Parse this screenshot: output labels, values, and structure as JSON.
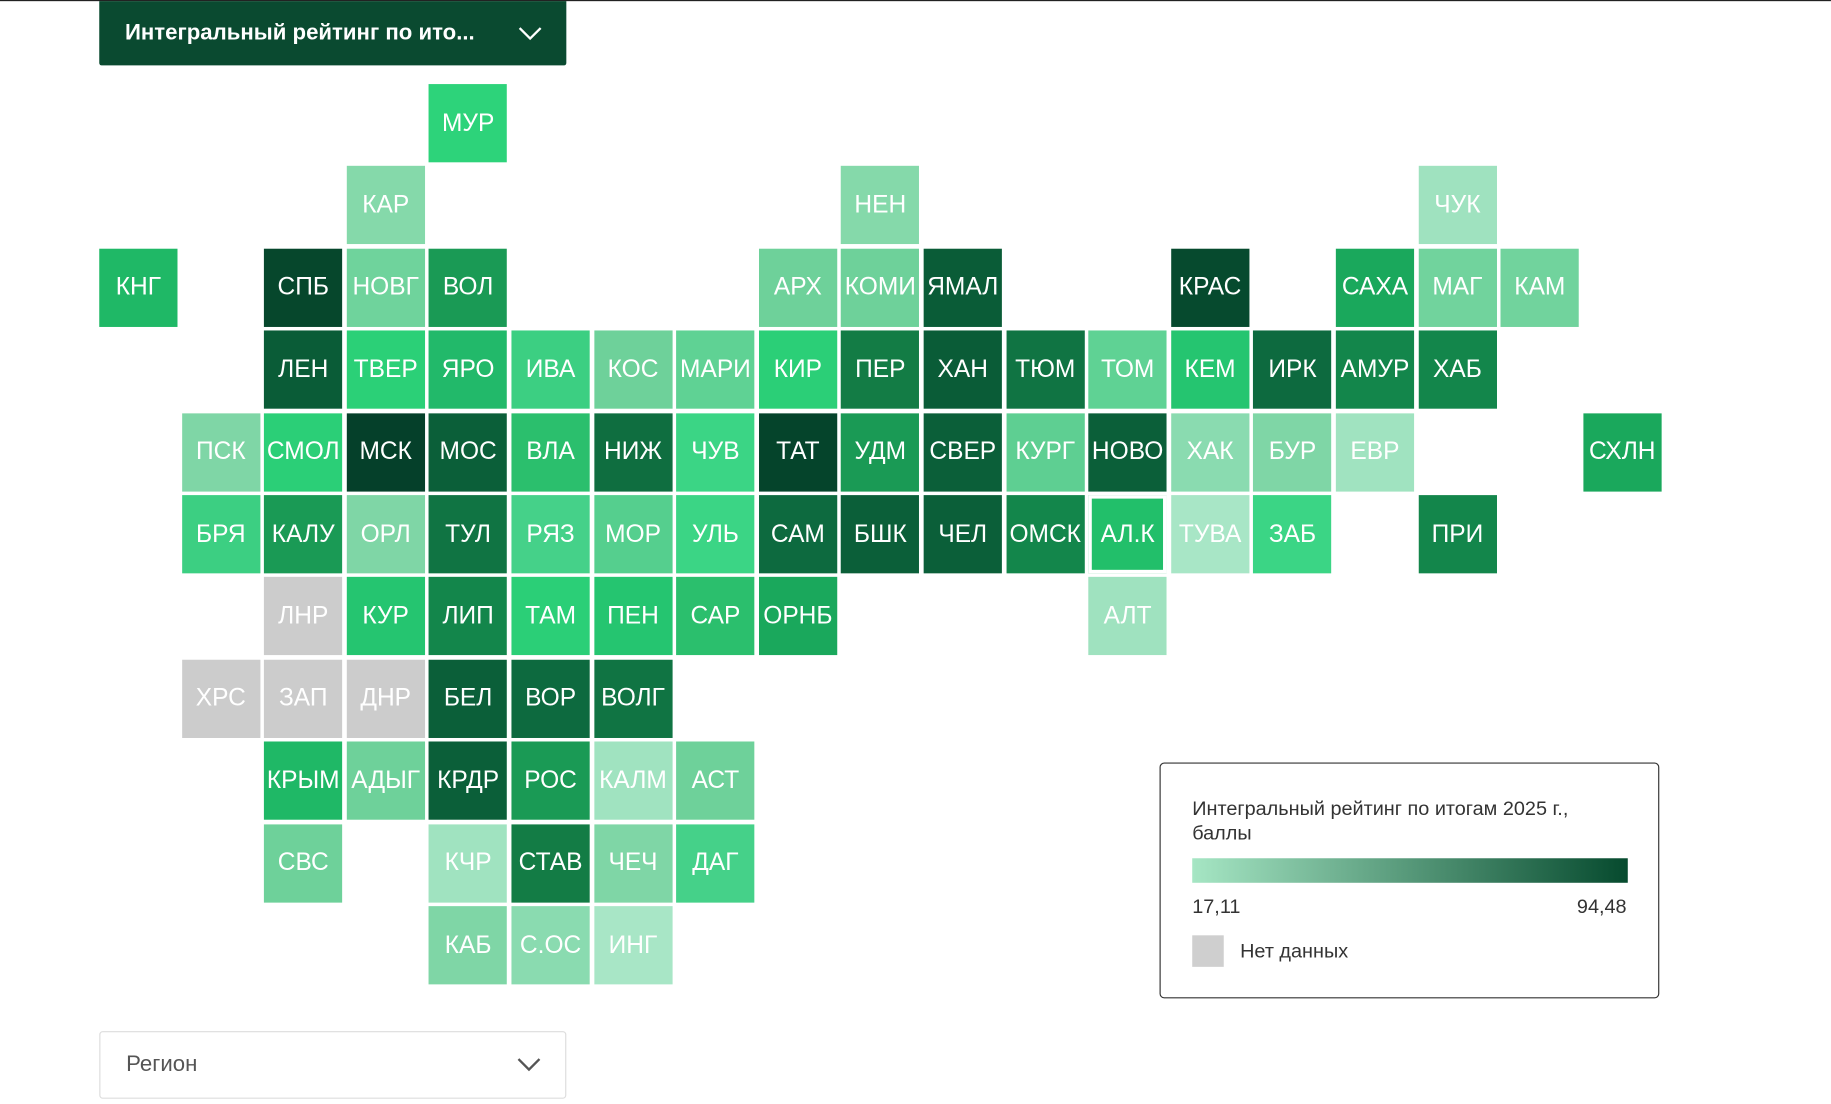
{
  "header": {
    "dropdown": "Интегральный рейтинг по ито..."
  },
  "tiles": [
    {
      "label": "МУР",
      "color": "#2dd37a"
    },
    {
      "label": "КАР",
      "color": "#85d9aa"
    },
    {
      "label": "НЕН",
      "color": "#85d9aa"
    },
    {
      "label": "ЧУК",
      "color": "#9fe2bf"
    },
    {
      "label": "КНГ",
      "color": "#1fb866"
    },
    {
      "label": "СПБ",
      "color": "#06472c"
    },
    {
      "label": "НОВГ",
      "color": "#6fd39c"
    },
    {
      "label": "ВОЛ",
      "color": "#1a9a55"
    },
    {
      "label": "АРХ",
      "color": "#6ed19a"
    },
    {
      "label": "КОМИ",
      "color": "#6ed19a"
    },
    {
      "label": "ЯМАЛ",
      "color": "#0a5c37"
    },
    {
      "label": "КРАС",
      "color": "#064a2e"
    },
    {
      "label": "САХА",
      "color": "#1aa85c"
    },
    {
      "label": "МАГ",
      "color": "#71d39d"
    },
    {
      "label": "КАМ",
      "color": "#71d39d"
    },
    {
      "label": "ЛЕН",
      "color": "#0a5c37"
    },
    {
      "label": "ТВЕР",
      "color": "#2bd077"
    },
    {
      "label": "ЯРО",
      "color": "#22b96a"
    },
    {
      "label": "ИВА",
      "color": "#3ccf82"
    },
    {
      "label": "КОС",
      "color": "#6ed19a"
    },
    {
      "label": "МАРИ",
      "color": "#5fd294"
    },
    {
      "label": "КИР",
      "color": "#2bcf77"
    },
    {
      "label": "ПЕР",
      "color": "#137c45"
    },
    {
      "label": "ХАН",
      "color": "#0a5c37"
    },
    {
      "label": "ТЮМ",
      "color": "#107443"
    },
    {
      "label": "ТОМ",
      "color": "#5fd294"
    },
    {
      "label": "КЕМ",
      "color": "#25c570"
    },
    {
      "label": "ИРК",
      "color": "#0d6a3f"
    },
    {
      "label": "АМУР",
      "color": "#13864b"
    },
    {
      "label": "ХАБ",
      "color": "#13864b"
    },
    {
      "label": "ПСК",
      "color": "#7fd6a6"
    },
    {
      "label": "СМОЛ",
      "color": "#2bcf77"
    },
    {
      "label": "МСК",
      "color": "#05402a"
    },
    {
      "label": "МОС",
      "color": "#0b5f39"
    },
    {
      "label": "ВЛА",
      "color": "#2bbf6d"
    },
    {
      "label": "НИЖ",
      "color": "#0f6e40"
    },
    {
      "label": "ЧУВ",
      "color": "#3bd585"
    },
    {
      "label": "ТАТ",
      "color": "#05442b"
    },
    {
      "label": "УДМ",
      "color": "#1a9a55"
    },
    {
      "label": "СВЕР",
      "color": "#0b5f39"
    },
    {
      "label": "КУРГ",
      "color": "#5ecf92"
    },
    {
      "label": "НОВО",
      "color": "#0b5f39"
    },
    {
      "label": "ХАК",
      "color": "#8adbb0"
    },
    {
      "label": "БУР",
      "color": "#7fd6a6"
    },
    {
      "label": "ЕВР",
      "color": "#a0e3c0"
    },
    {
      "label": "СХЛН",
      "color": "#1aa85c"
    },
    {
      "label": "БРЯ",
      "color": "#3ccf82"
    },
    {
      "label": "КАЛУ",
      "color": "#1a9a55"
    },
    {
      "label": "ОРЛ",
      "color": "#7fd6a6"
    },
    {
      "label": "ТУЛ",
      "color": "#107443"
    },
    {
      "label": "РЯЗ",
      "color": "#45d189"
    },
    {
      "label": "МОР",
      "color": "#55cf8e"
    },
    {
      "label": "УЛЬ",
      "color": "#3bd585"
    },
    {
      "label": "САМ",
      "color": "#0d6a3f"
    },
    {
      "label": "БШК",
      "color": "#0b5f39"
    },
    {
      "label": "ЧЕЛ",
      "color": "#0b5f39"
    },
    {
      "label": "ОМСК",
      "color": "#13864b"
    },
    {
      "label": "АЛ.К",
      "color": "#22bf6a"
    },
    {
      "label": "ТУВА",
      "color": "#a8e6c6"
    },
    {
      "label": "ЗАБ",
      "color": "#3bd585"
    },
    {
      "label": "ПРИ",
      "color": "#13864b"
    },
    {
      "label": "ЛНР",
      "color": "#cccccc"
    },
    {
      "label": "КУР",
      "color": "#25c570"
    },
    {
      "label": "ЛИП",
      "color": "#13864b"
    },
    {
      "label": "ТАМ",
      "color": "#2bcf77"
    },
    {
      "label": "ПЕН",
      "color": "#25c570"
    },
    {
      "label": "САР",
      "color": "#2bbf6d"
    },
    {
      "label": "ОРНБ",
      "color": "#1aa85c"
    },
    {
      "label": "АЛТ",
      "color": "#9fe2bf"
    },
    {
      "label": "ХРС",
      "color": "#cccccc"
    },
    {
      "label": "ЗАП",
      "color": "#cccccc"
    },
    {
      "label": "ДНР",
      "color": "#cccccc"
    },
    {
      "label": "БЕЛ",
      "color": "#0b5f39"
    },
    {
      "label": "ВОР",
      "color": "#0d6a3f"
    },
    {
      "label": "ВОЛГ",
      "color": "#107443"
    },
    {
      "label": "КРЫМ",
      "color": "#1fb866"
    },
    {
      "label": "АДЫГ",
      "color": "#6ed19a"
    },
    {
      "label": "КРДР",
      "color": "#0b5f39"
    },
    {
      "label": "РОС",
      "color": "#1a9a55"
    },
    {
      "label": "КАЛМ",
      "color": "#a0e3c0"
    },
    {
      "label": "АСТ",
      "color": "#6ed19a"
    },
    {
      "label": "СВС",
      "color": "#6ed19a"
    },
    {
      "label": "КЧР",
      "color": "#a0e3c0"
    },
    {
      "label": "СТАВ",
      "color": "#137c45"
    },
    {
      "label": "ЧЕЧ",
      "color": "#7fd6a6"
    },
    {
      "label": "ДАГ",
      "color": "#45d189"
    },
    {
      "label": "КАБ",
      "color": "#7fd6a6"
    },
    {
      "label": "С.ОС",
      "color": "#8adbb0"
    },
    {
      "label": "ИНГ",
      "color": "#a8e6c6"
    }
  ],
  "legend": {
    "title": "Интегральный рейтинг по итогам 2025 г., баллы",
    "min_label": "17,11",
    "max_label": "94,48",
    "no_data": "Нет данных",
    "gradient_from": "#a6e6c4",
    "gradient_to": "#064a2e",
    "no_data_color": "#cfcfcf"
  },
  "footer": {
    "dropdown": "Регион"
  }
}
